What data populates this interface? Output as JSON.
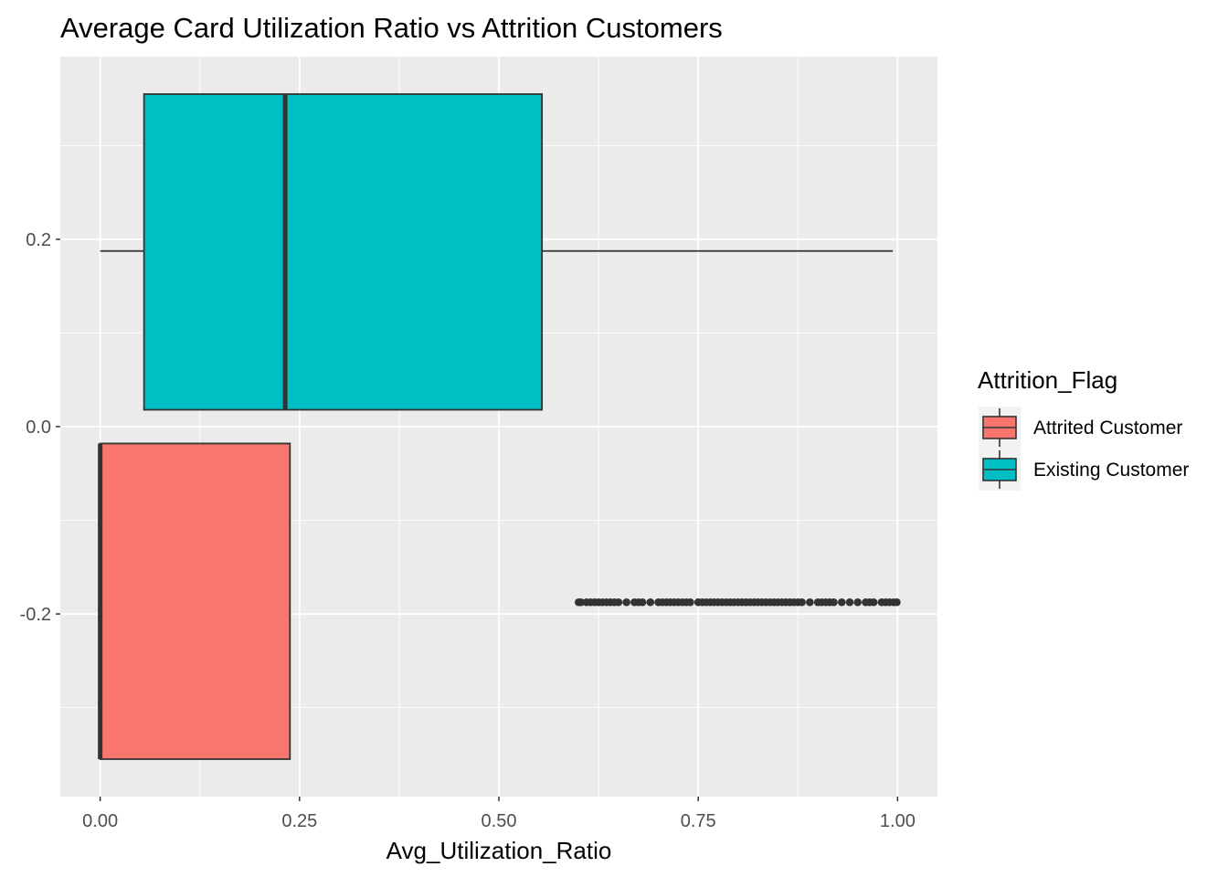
{
  "chart_data": {
    "type": "boxplot",
    "orientation": "horizontal",
    "title": "Average Card Utilization Ratio vs  Attrition Customers",
    "xlabel": "Avg_Utilization_Ratio",
    "ylabel": "",
    "xlim": [
      -0.05,
      1.05
    ],
    "ylim": [
      -0.395,
      0.395
    ],
    "x_ticks": [
      {
        "value": 0.0,
        "label": "0.00"
      },
      {
        "value": 0.25,
        "label": "0.25"
      },
      {
        "value": 0.5,
        "label": "0.50"
      },
      {
        "value": 0.75,
        "label": "0.75"
      },
      {
        "value": 1.0,
        "label": "1.00"
      }
    ],
    "y_ticks": [
      {
        "value": 0.2,
        "label": "0.2"
      },
      {
        "value": 0.0,
        "label": "0.0"
      },
      {
        "value": -0.2,
        "label": "-0.2"
      }
    ],
    "grid": true,
    "legend": {
      "title": "Attrition_Flag",
      "position": "right"
    },
    "series": [
      {
        "name": "Attrited Customer",
        "color": "#F8766D",
        "y_center": -0.1875,
        "y_range": [
          -0.355,
          -0.018
        ],
        "min": 0.0,
        "q1": 0.0,
        "median": 0.0,
        "q3": 0.238,
        "max": 0.238,
        "outliers": [
          0.6,
          0.603,
          0.61,
          0.615,
          0.62,
          0.625,
          0.63,
          0.635,
          0.64,
          0.645,
          0.65,
          0.66,
          0.67,
          0.675,
          0.68,
          0.69,
          0.7,
          0.705,
          0.71,
          0.715,
          0.72,
          0.725,
          0.73,
          0.735,
          0.74,
          0.75,
          0.755,
          0.76,
          0.765,
          0.77,
          0.775,
          0.78,
          0.785,
          0.79,
          0.795,
          0.8,
          0.805,
          0.81,
          0.815,
          0.82,
          0.825,
          0.83,
          0.835,
          0.84,
          0.845,
          0.85,
          0.855,
          0.86,
          0.865,
          0.87,
          0.875,
          0.88,
          0.89,
          0.9,
          0.905,
          0.91,
          0.915,
          0.92,
          0.93,
          0.94,
          0.95,
          0.96,
          0.965,
          0.97,
          0.98,
          0.985,
          0.99,
          0.995,
          0.999
        ]
      },
      {
        "name": "Existing Customer",
        "color": "#00BFC4",
        "y_center": 0.1875,
        "y_range": [
          0.018,
          0.355
        ],
        "min": 0.0,
        "q1": 0.055,
        "median": 0.232,
        "q3": 0.554,
        "max": 0.994,
        "outliers": []
      }
    ]
  }
}
